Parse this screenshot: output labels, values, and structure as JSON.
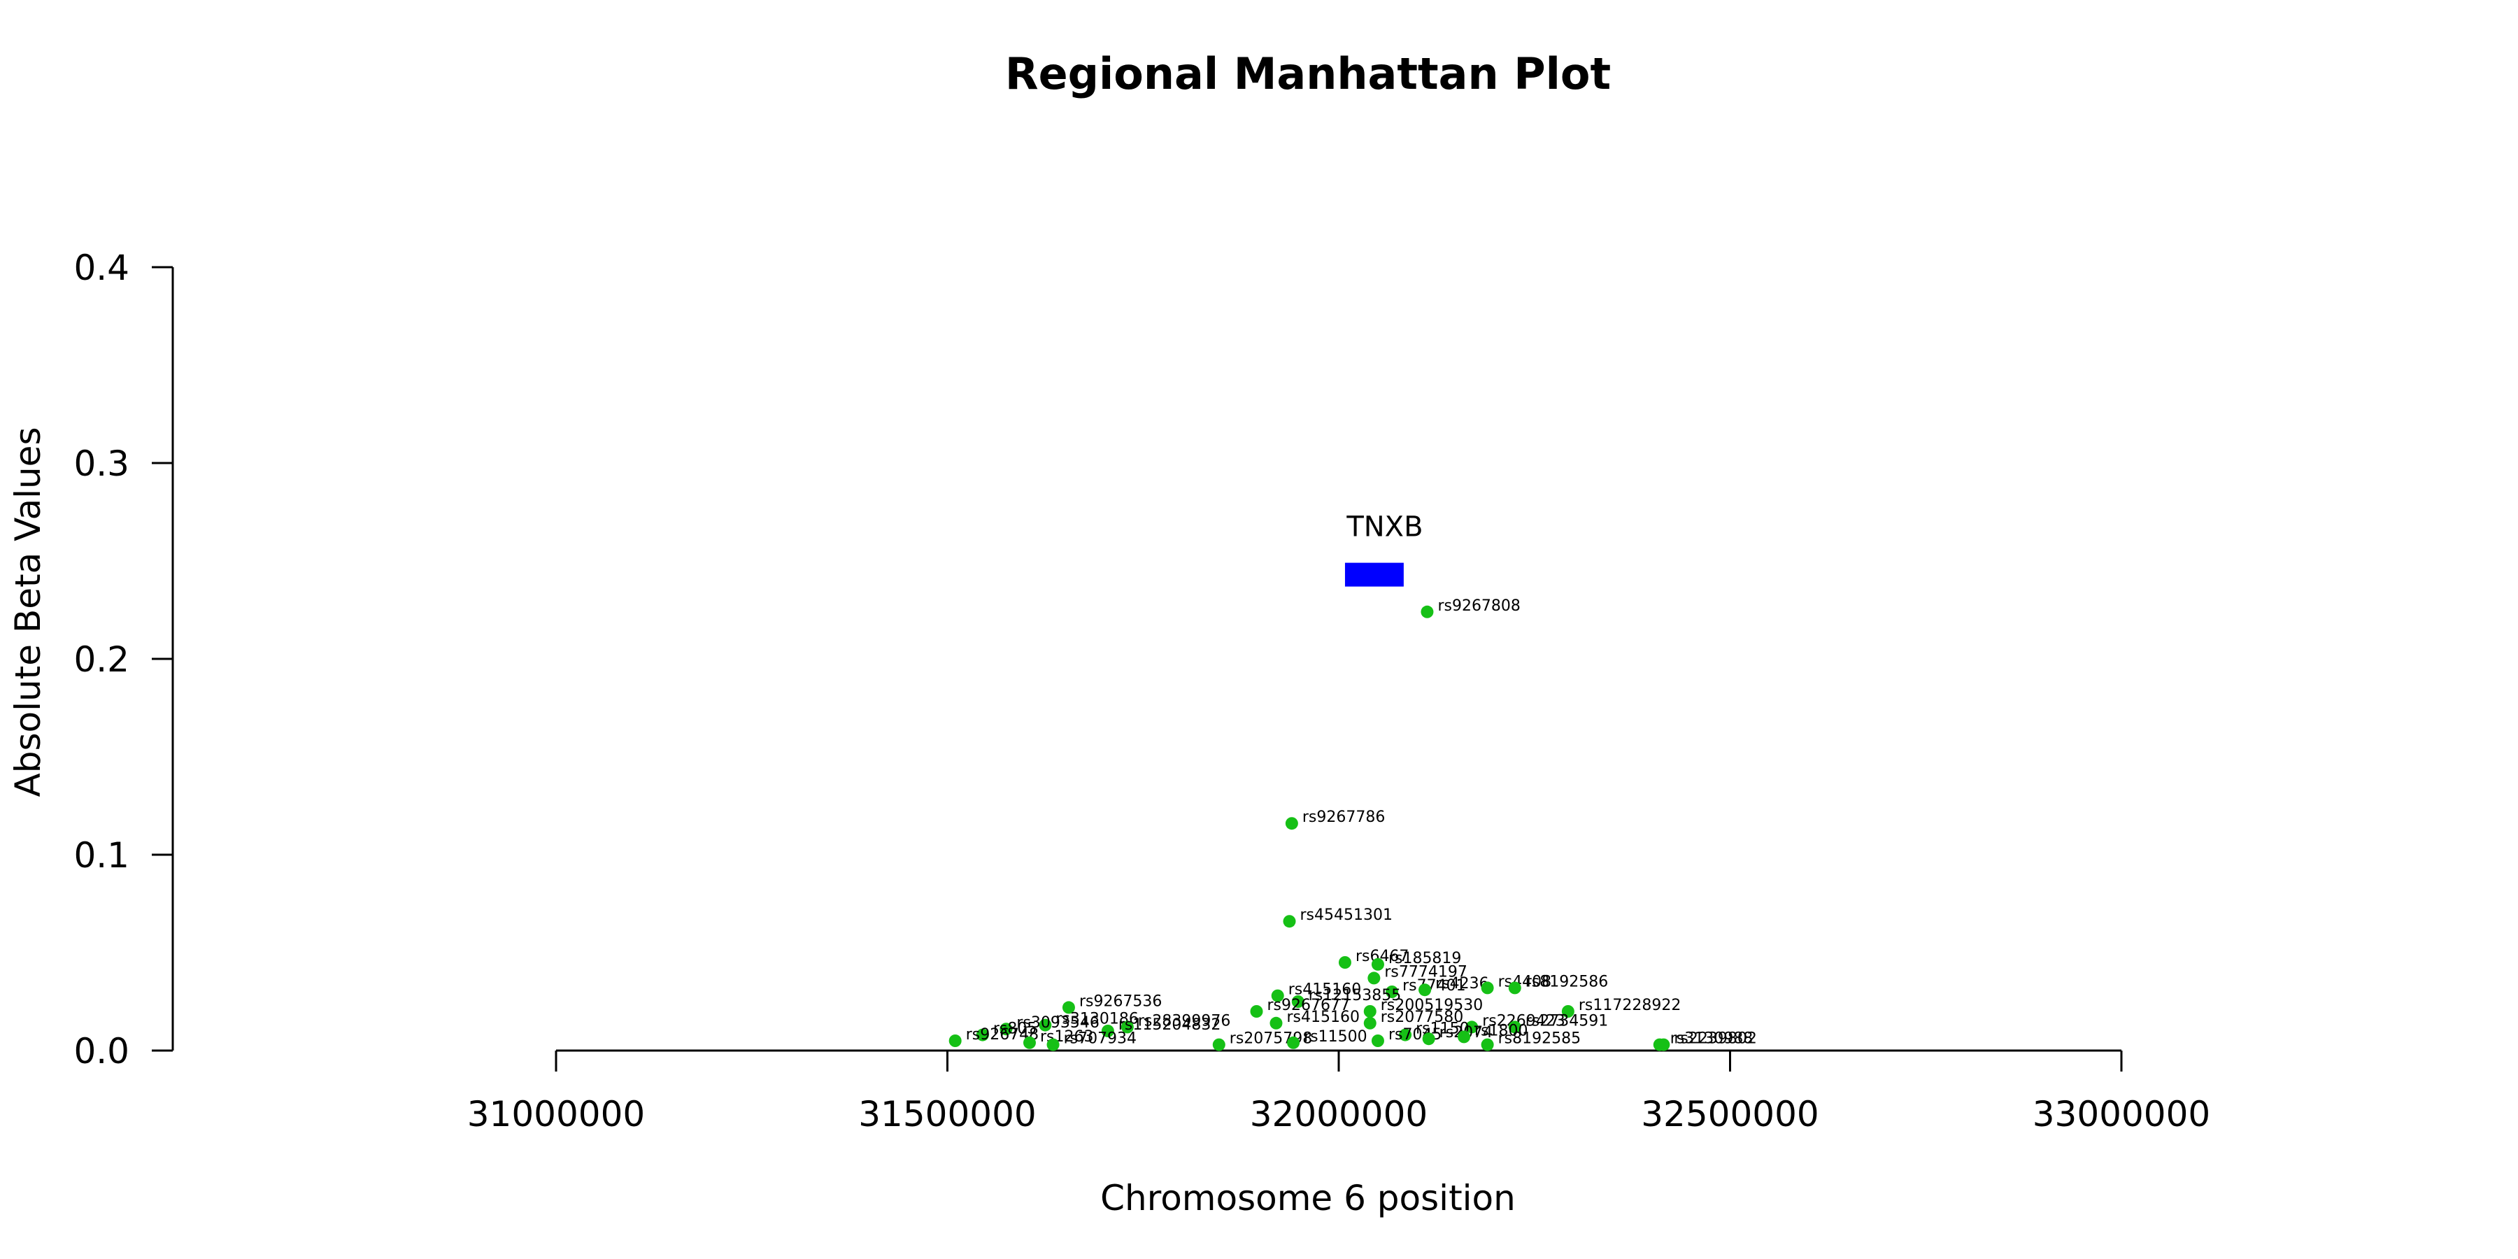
{
  "chart_data": {
    "type": "scatter",
    "title": "Regional Manhattan Plot",
    "xlabel": "Chromosome 6 position",
    "ylabel": "Absolute Beta Values",
    "xlim": [
      31000000,
      33000000
    ],
    "ylim": [
      0,
      0.4
    ],
    "x_ticks": [
      "31000000",
      "31500000",
      "32000000",
      "32500000",
      "33000000"
    ],
    "y_ticks": [
      "0.0",
      "0.1",
      "0.2",
      "0.3",
      "0.4"
    ],
    "point_color": "#16c016",
    "gene": {
      "name": "TNXB",
      "start": 32008000,
      "end": 32083000,
      "y": 0.243,
      "color": "#0000ff"
    },
    "points": [
      {
        "id": "rs9267808",
        "x": 32113000,
        "y": 0.224
      },
      {
        "id": "rs9267786",
        "x": 31940000,
        "y": 0.116
      },
      {
        "id": "rs45451301",
        "x": 31937000,
        "y": 0.066
      },
      {
        "id": "rs6467",
        "x": 32008000,
        "y": 0.045
      },
      {
        "id": "rs185819",
        "x": 32050000,
        "y": 0.044
      },
      {
        "id": "rs7774197",
        "x": 32045000,
        "y": 0.037
      },
      {
        "id": "rs77401",
        "x": 32068000,
        "y": 0.03
      },
      {
        "id": "rs4236",
        "x": 32110000,
        "y": 0.031
      },
      {
        "id": "rs4408",
        "x": 32190000,
        "y": 0.032
      },
      {
        "id": "rs8192586",
        "x": 32225000,
        "y": 0.032
      },
      {
        "id": "rs117228922",
        "x": 32293000,
        "y": 0.02
      },
      {
        "id": "rs415160",
        "x": 31922000,
        "y": 0.028
      },
      {
        "id": "rs12153855",
        "x": 31948000,
        "y": 0.025
      },
      {
        "id": "rs9267536",
        "x": 31655000,
        "y": 0.022
      },
      {
        "id": "rs9267677",
        "x": 31895000,
        "y": 0.02
      },
      {
        "id": "rs200519530",
        "x": 32040000,
        "y": 0.02
      },
      {
        "id": "rs415160b",
        "x": 31920000,
        "y": 0.014
      },
      {
        "id": "rs2077580",
        "x": 32040000,
        "y": 0.014
      },
      {
        "id": "rs2269423",
        "x": 32170000,
        "y": 0.012
      },
      {
        "id": "rs2734591",
        "x": 32225000,
        "y": 0.012
      },
      {
        "id": "rs3130186",
        "x": 31625000,
        "y": 0.013
      },
      {
        "id": "rs28399976",
        "x": 31730000,
        "y": 0.012
      },
      {
        "id": "rs115204832",
        "x": 31705000,
        "y": 0.01
      },
      {
        "id": "rs3093546",
        "x": 31575000,
        "y": 0.011
      },
      {
        "id": "rs805",
        "x": 31545000,
        "y": 0.008
      },
      {
        "id": "rs1150",
        "x": 32085000,
        "y": 0.008
      },
      {
        "id": "rs2075798",
        "x": 31847000,
        "y": 0.003
      },
      {
        "id": "rs11500",
        "x": 31942000,
        "y": 0.004
      },
      {
        "id": "rs7045",
        "x": 32050000,
        "y": 0.005
      },
      {
        "id": "rs8192585",
        "x": 32190000,
        "y": 0.003
      },
      {
        "id": "rs3130988",
        "x": 32410000,
        "y": 0.003
      },
      {
        "id": "rs2239802",
        "x": 32415000,
        "y": 0.003
      },
      {
        "id": "rs926748",
        "x": 31510000,
        "y": 0.005
      },
      {
        "id": "rs1263",
        "x": 31605000,
        "y": 0.004
      },
      {
        "id": "rs707934",
        "x": 31635000,
        "y": 0.003
      },
      {
        "id": "rs2074",
        "x": 32115000,
        "y": 0.006
      },
      {
        "id": "rs1800",
        "x": 32160000,
        "y": 0.007
      }
    ]
  }
}
